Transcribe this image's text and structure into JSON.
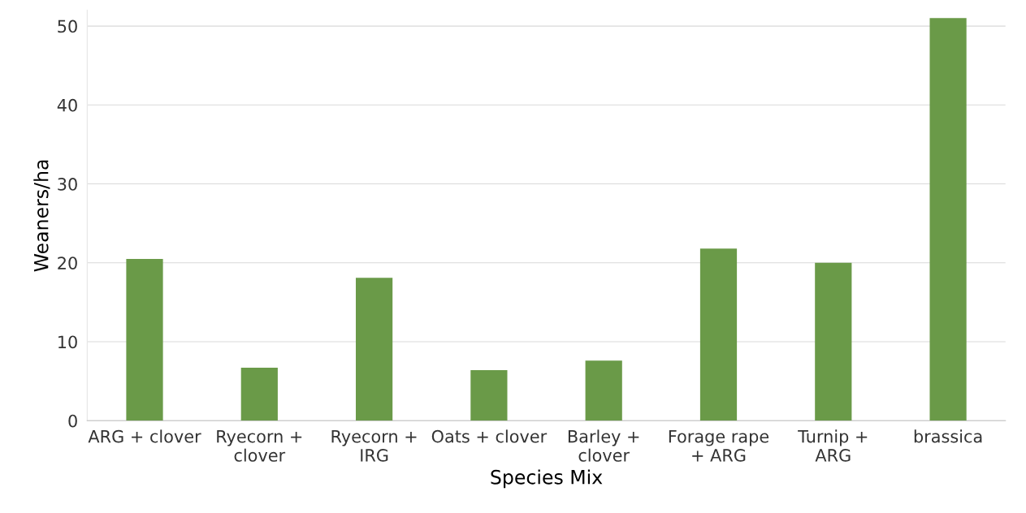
{
  "chart_data": {
    "type": "bar",
    "xlabel": "Species Mix",
    "ylabel": "Weaners/ha",
    "categories": [
      "ARG + clover",
      "Ryecorn +\nclover",
      "Ryecorn +\nIRG",
      "Oats + clover",
      "Barley +\nclover",
      "Forage rape\n+ ARG",
      "Turnip +\nARG",
      "brassica"
    ],
    "values": [
      20.5,
      6.7,
      18.1,
      6.4,
      7.6,
      21.8,
      20.0,
      51.0
    ],
    "color": "#6a9a48",
    "ylim": [
      0,
      52
    ],
    "yticks": [
      0,
      10,
      20,
      30,
      40,
      50
    ],
    "grid": "y",
    "legend": false
  }
}
